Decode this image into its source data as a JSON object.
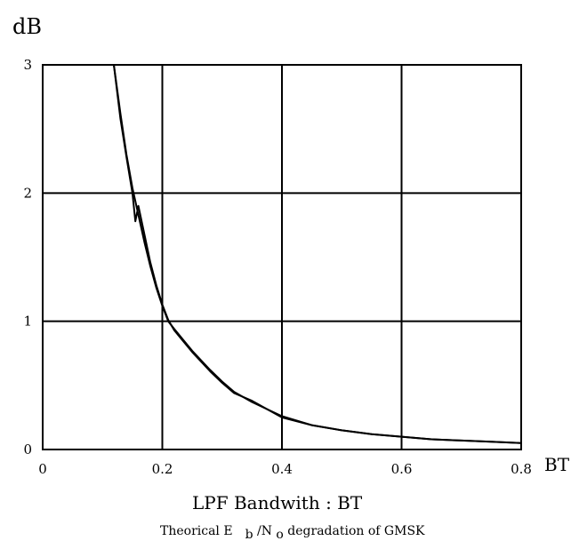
{
  "chart_data": {
    "type": "line",
    "title": "",
    "ylabel": "dB",
    "xlabel": "LPF Bandwith : BT",
    "x_unit_label": "BT",
    "caption": {
      "prefix": "Theorical E",
      "sub1": "b",
      "middle": " /N ",
      "sub2": "o",
      "suffix": " degradation of GMSK"
    },
    "xlim": [
      0,
      0.8
    ],
    "ylim": [
      0,
      3
    ],
    "grid": true,
    "x_ticks": [
      0,
      0.2,
      0.4,
      0.6,
      0.8
    ],
    "x_tick_labels": [
      "0",
      "0.2",
      "0.4",
      "0.6",
      "0.8"
    ],
    "y_ticks": [
      0,
      1,
      2,
      3
    ],
    "y_tick_labels": [
      "0",
      "1",
      "2",
      "3"
    ],
    "series": [
      {
        "x": [
          0.119,
          0.13,
          0.14,
          0.15,
          0.16,
          0.17,
          0.18,
          0.19,
          0.2,
          0.21,
          0.22,
          0.25,
          0.28,
          0.3,
          0.32,
          0.35,
          0.4,
          0.45,
          0.5,
          0.55,
          0.6,
          0.65,
          0.7,
          0.75,
          0.8
        ],
        "y": [
          3.0,
          2.62,
          2.3,
          2.04,
          1.83,
          1.62,
          1.43,
          1.26,
          1.12,
          1.0,
          0.94,
          0.77,
          0.62,
          0.53,
          0.45,
          0.37,
          0.26,
          0.19,
          0.15,
          0.12,
          0.1,
          0.08,
          0.07,
          0.06,
          0.05
        ]
      },
      {
        "x": [
          0.119,
          0.13,
          0.14,
          0.15,
          0.155,
          0.16,
          0.17,
          0.18,
          0.19,
          0.2,
          0.21,
          0.22,
          0.25,
          0.28,
          0.3,
          0.32,
          0.35,
          0.4,
          0.45,
          0.5,
          0.55,
          0.6,
          0.65,
          0.7,
          0.75,
          0.8
        ],
        "y": [
          3.0,
          2.58,
          2.28,
          2.0,
          1.78,
          1.9,
          1.68,
          1.46,
          1.28,
          1.13,
          1.01,
          0.93,
          0.76,
          0.61,
          0.52,
          0.44,
          0.38,
          0.25,
          0.19,
          0.15,
          0.12,
          0.1,
          0.08,
          0.07,
          0.06,
          0.05
        ]
      }
    ]
  }
}
